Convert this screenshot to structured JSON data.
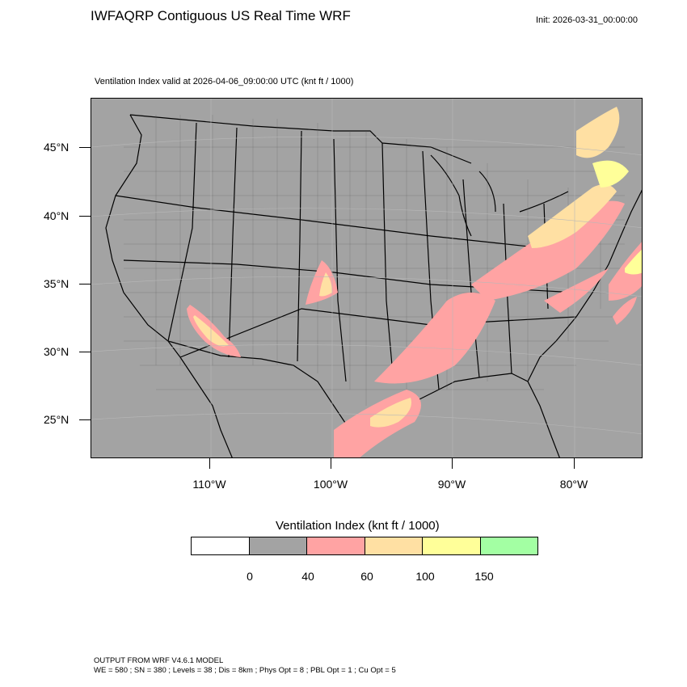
{
  "header": {
    "title": "IWFAQRP Contiguous US Real Time WRF",
    "init": "Init: 2026-03-31_00:00:00",
    "subtitle": "Ventilation Index valid at 2026-04-06_09:00:00 UTC   (knt ft / 1000)"
  },
  "map": {
    "latitude_labels": [
      "45°N",
      "40°N",
      "35°N",
      "30°N",
      "25°N"
    ],
    "longitude_labels": [
      "110°W",
      "100°W",
      "90°W",
      "80°W"
    ],
    "background_color": "#a3a3a3"
  },
  "legend": {
    "title": "Ventilation Index  (knt ft / 1000)",
    "bins": [
      {
        "color": "#ffffff"
      },
      {
        "color": "#a3a3a3"
      },
      {
        "color": "#ffa3a3"
      },
      {
        "color": "#ffe0a3"
      },
      {
        "color": "#ffff99"
      },
      {
        "color": "#a3ffa3"
      }
    ],
    "labels": [
      "0",
      "40",
      "60",
      "100",
      "150"
    ]
  },
  "footer": {
    "line1": "OUTPUT FROM WRF V4.6.1 MODEL",
    "line2": "WE = 580 ; SN = 380 ; Levels = 38 ; Dis = 8km ; Phys Opt = 8 ; PBL Opt = 1 ; Cu Opt = 5"
  }
}
